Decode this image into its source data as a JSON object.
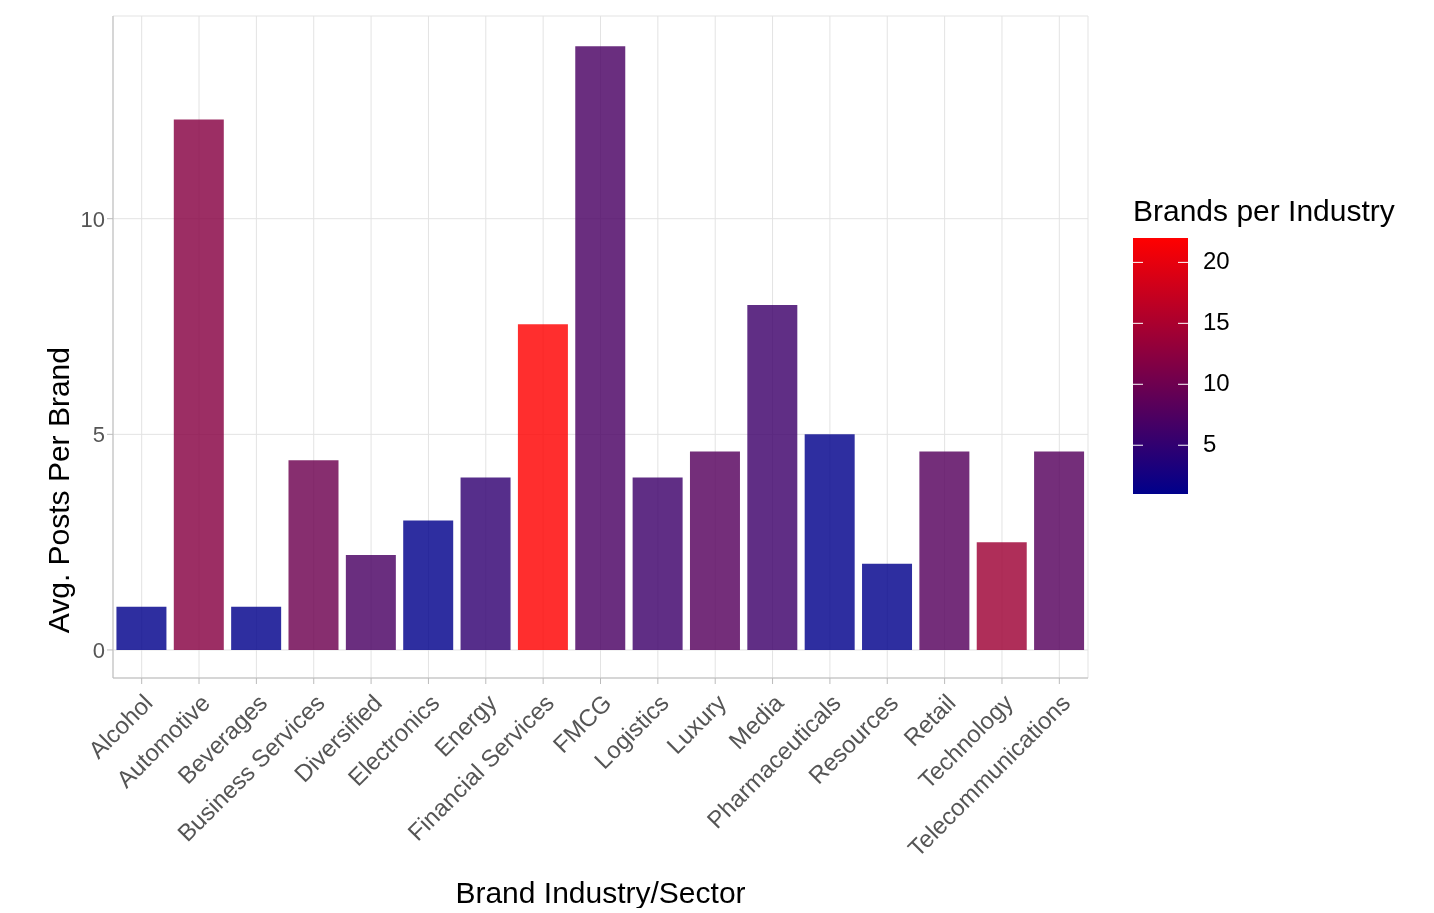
{
  "chart_data": {
    "type": "bar",
    "xlabel": "Brand Industry/Sector",
    "ylabel": "Avg. Posts Per Brand",
    "clabel": "Brands per Industry",
    "categories": [
      "Alcohol",
      "Automotive",
      "Beverages",
      "Business Services",
      "Diversified",
      "Electronics",
      "Energy",
      "Financial Services",
      "FMCG",
      "Logistics",
      "Luxury",
      "Media",
      "Pharmaceuticals",
      "Resources",
      "Retail",
      "Technology",
      "Telecommunications"
    ],
    "values": [
      1.0,
      12.3,
      1.0,
      4.4,
      2.2,
      3.0,
      4.0,
      7.55,
      14.0,
      4.0,
      4.6,
      8.0,
      5.0,
      2.0,
      4.6,
      2.5,
      4.6
    ],
    "cvalues": [
      1,
      12,
      1,
      10,
      7,
      1,
      5,
      22,
      7,
      6,
      8,
      6,
      1,
      1,
      8,
      14,
      8
    ],
    "clim": [
      1,
      22
    ],
    "cticks": [
      5,
      10,
      15,
      20
    ],
    "ylim": [
      -0.65,
      14.7
    ],
    "yticks": [
      0,
      5,
      10
    ],
    "grid": true
  }
}
